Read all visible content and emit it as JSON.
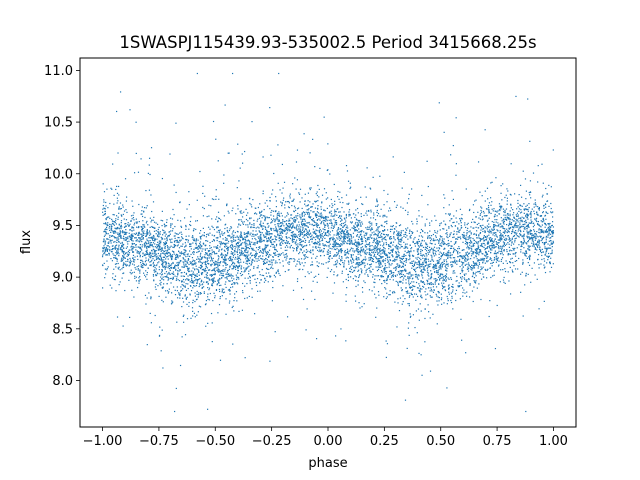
{
  "chart_data": {
    "type": "scatter",
    "title": "1SWASPJ115439.93-535002.5 Period 3415668.25s",
    "xlabel": "phase",
    "ylabel": "flux",
    "xlim": [
      -1.1,
      1.1
    ],
    "ylim": [
      7.55,
      11.12
    ],
    "x_ticks": [
      -1.0,
      -0.75,
      -0.5,
      -0.25,
      0.0,
      0.25,
      0.5,
      0.75,
      1.0
    ],
    "x_tick_labels": [
      "−1.00",
      "−0.75",
      "−0.50",
      "−0.25",
      "0.00",
      "0.25",
      "0.50",
      "0.75",
      "1.00"
    ],
    "y_ticks": [
      8.0,
      8.5,
      9.0,
      9.5,
      10.0,
      10.5,
      11.0
    ],
    "y_tick_labels": [
      "8.0",
      "8.5",
      "9.0",
      "9.5",
      "10.0",
      "10.5",
      "11.0"
    ],
    "grid": false,
    "legend": "none",
    "marker_color": "#1f77b4",
    "series": [
      {
        "x_range": [
          -1.0,
          1.0
        ],
        "binned_profile": {
          "phase": [
            -1.0,
            -0.9,
            -0.8,
            -0.7,
            -0.6,
            -0.5,
            -0.4,
            -0.3,
            -0.2,
            -0.1,
            0.0,
            0.1,
            0.2,
            0.3,
            0.4,
            0.5,
            0.6,
            0.7,
            0.8,
            0.9,
            1.0
          ],
          "median_flux": [
            9.42,
            9.35,
            9.28,
            9.18,
            9.12,
            9.15,
            9.22,
            9.35,
            9.42,
            9.45,
            9.42,
            9.35,
            9.28,
            9.18,
            9.12,
            9.15,
            9.22,
            9.35,
            9.42,
            9.45,
            9.42
          ],
          "core_scatter": [
            0.18,
            0.18,
            0.18,
            0.2,
            0.22,
            0.22,
            0.2,
            0.18,
            0.18,
            0.18,
            0.18,
            0.18,
            0.18,
            0.2,
            0.22,
            0.22,
            0.2,
            0.18,
            0.18,
            0.18,
            0.18
          ]
        },
        "outlier_flux_range": [
          7.7,
          10.97
        ]
      }
    ]
  }
}
